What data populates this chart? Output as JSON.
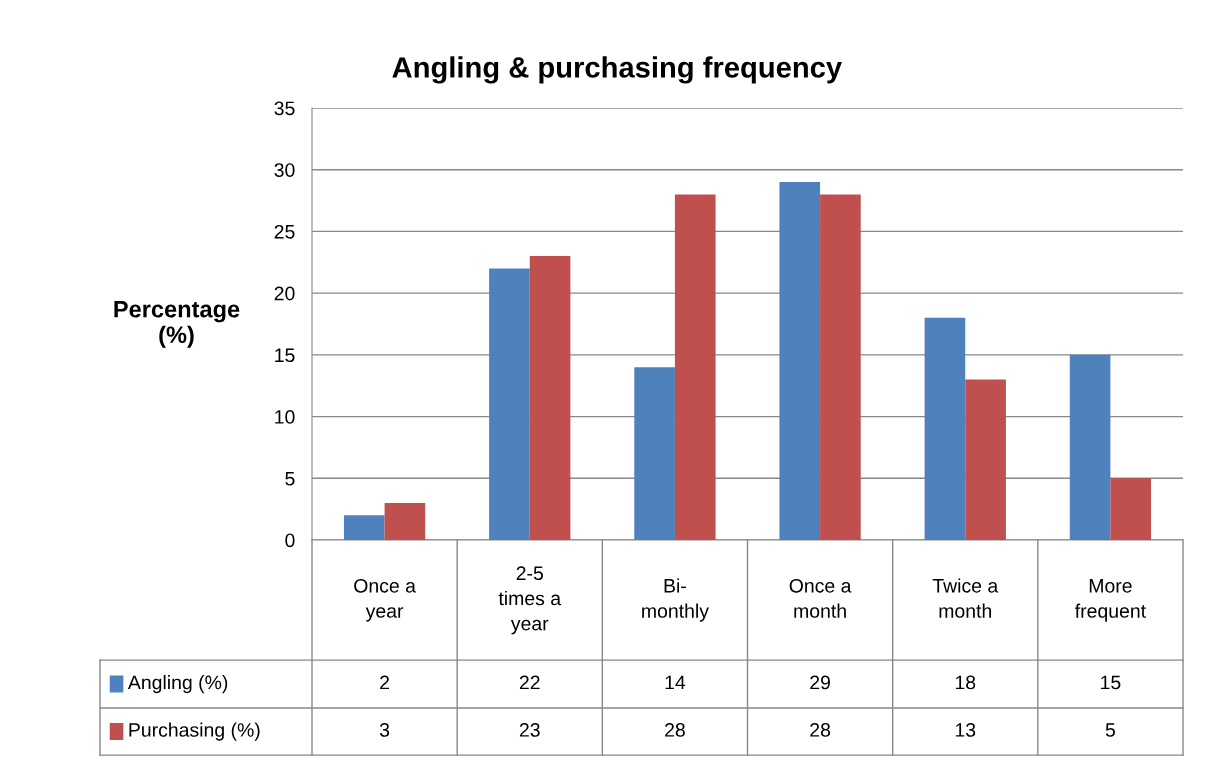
{
  "chart_data": {
    "type": "bar",
    "title": "Angling & purchasing frequency",
    "ylabel": "Percentage\n(%)",
    "categories": [
      "Once a\nyear",
      "2-5\ntimes a\nyear",
      "Bi-\nmonthly",
      "Once a\nmonth",
      "Twice a\nmonth",
      "More\nfrequent"
    ],
    "series": [
      {
        "name": "Angling (%)",
        "color": "#4f81bd",
        "values": [
          2,
          22,
          14,
          29,
          18,
          15
        ]
      },
      {
        "name": "Purchasing (%)",
        "color": "#c0504d",
        "values": [
          3,
          23,
          28,
          28,
          13,
          5
        ]
      }
    ],
    "ylim": [
      0,
      35
    ],
    "yticks": [
      0,
      5,
      10,
      15,
      20,
      25,
      30,
      35
    ],
    "grid": "y",
    "legend": "bottom",
    "data_labels": true
  }
}
